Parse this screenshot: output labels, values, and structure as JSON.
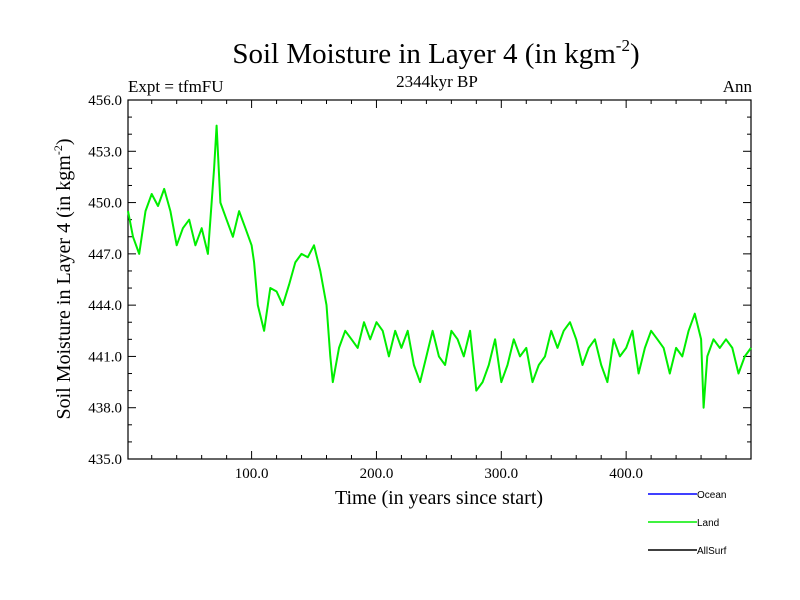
{
  "chart_data": {
    "type": "line",
    "title": "Soil Moisture in Layer 4 (in kgm",
    "title_exponent": "-2",
    "title_close": ")",
    "subtitle": "2344kyr BP",
    "left_label": "Expt = tfmFU",
    "right_label": "Ann",
    "xlabel": "Time (in years since start)",
    "ylabel": "Soil Moisture in Layer 4 (in kgm",
    "ylabel_exponent": "-2",
    "ylabel_close": ")",
    "xlim": [
      1,
      500
    ],
    "ylim": [
      435,
      456
    ],
    "x_ticks": [
      100,
      200,
      300,
      400
    ],
    "x_tick_labels": [
      "100.0",
      "200.0",
      "300.0",
      "400.0"
    ],
    "y_ticks": [
      435,
      438,
      441,
      444,
      447,
      450,
      453,
      456
    ],
    "y_tick_labels": [
      "435.0",
      "438.0",
      "441.0",
      "444.0",
      "447.0",
      "450.0",
      "453.0",
      "456.0"
    ],
    "legend": [
      {
        "name": "Ocean",
        "color": "#0000ff"
      },
      {
        "name": "Land",
        "color": "#00ee00"
      },
      {
        "name": "AllSurf",
        "color": "#000000"
      }
    ],
    "series": [
      {
        "name": "Land",
        "color": "#00ee00",
        "x": [
          1,
          5,
          10,
          15,
          20,
          25,
          30,
          35,
          40,
          45,
          50,
          55,
          60,
          65,
          70,
          72,
          75,
          80,
          85,
          90,
          95,
          100,
          102,
          105,
          110,
          115,
          120,
          125,
          130,
          135,
          140,
          145,
          150,
          155,
          160,
          163,
          165,
          170,
          175,
          180,
          185,
          190,
          195,
          200,
          205,
          210,
          215,
          220,
          225,
          230,
          235,
          240,
          245,
          250,
          255,
          260,
          265,
          270,
          275,
          280,
          285,
          290,
          295,
          300,
          305,
          310,
          315,
          320,
          325,
          330,
          335,
          340,
          345,
          350,
          355,
          360,
          365,
          370,
          375,
          380,
          385,
          390,
          395,
          400,
          405,
          410,
          415,
          420,
          425,
          430,
          435,
          440,
          445,
          450,
          455,
          460,
          462,
          465,
          470,
          475,
          480,
          485,
          490,
          495,
          500
        ],
        "y": [
          449.5,
          448.0,
          447.0,
          449.5,
          450.5,
          449.8,
          450.8,
          449.5,
          447.5,
          448.5,
          449.0,
          447.5,
          448.5,
          447.0,
          452.0,
          454.5,
          450.0,
          449.0,
          448.0,
          449.5,
          448.5,
          447.5,
          446.5,
          444.0,
          442.5,
          445.0,
          444.8,
          444.0,
          445.2,
          446.5,
          447.0,
          446.8,
          447.5,
          446.0,
          444.0,
          441.0,
          439.5,
          441.5,
          442.5,
          442.0,
          441.5,
          443.0,
          442.0,
          443.0,
          442.5,
          441.0,
          442.5,
          441.5,
          442.5,
          440.5,
          439.5,
          441.0,
          442.5,
          441.0,
          440.5,
          442.5,
          442.0,
          441.0,
          442.5,
          439.0,
          439.5,
          440.5,
          442.0,
          439.5,
          440.5,
          442.0,
          441.0,
          441.5,
          439.5,
          440.5,
          441.0,
          442.5,
          441.5,
          442.5,
          443.0,
          442.0,
          440.5,
          441.5,
          442.0,
          440.5,
          439.5,
          442.0,
          441.0,
          441.5,
          442.5,
          440.0,
          441.5,
          442.5,
          442.0,
          441.5,
          440.0,
          441.5,
          441.0,
          442.5,
          443.5,
          442.0,
          438.0,
          441.0,
          442.0,
          441.5,
          442.0,
          441.5,
          440.0,
          441.0,
          441.5
        ]
      }
    ]
  }
}
